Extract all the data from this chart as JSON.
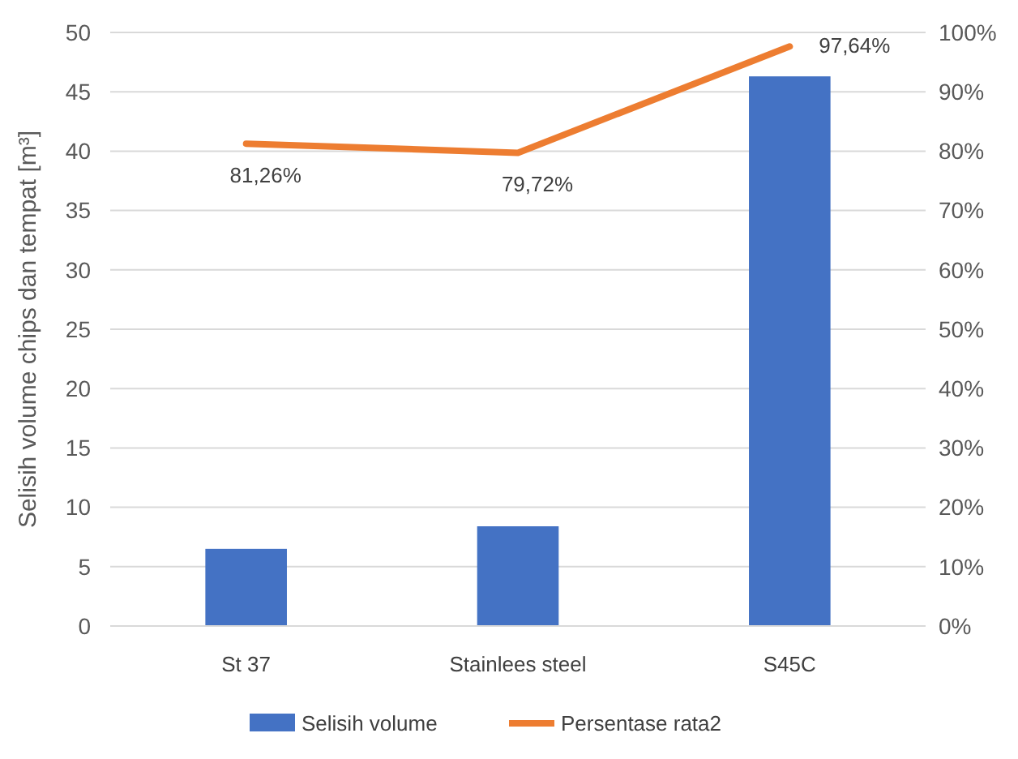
{
  "chart_data": {
    "type": "bar",
    "ylabel": "Selisih volume chips dan tempat [m³]",
    "categories": [
      "St 37",
      "Stainlees steel",
      "S45C"
    ],
    "series": [
      {
        "name": "Selisih volume",
        "color": "#4472c4",
        "values": [
          6.5,
          8.4,
          46.3
        ]
      },
      {
        "name": "Persentase rata2",
        "type": "line",
        "axis": "y2",
        "color": "#ed7d31",
        "values": [
          81.26,
          79.72,
          97.64
        ],
        "value_labels": [
          "81,26%",
          "79,72%",
          "97,64%"
        ]
      }
    ],
    "ylim": [
      0,
      50
    ],
    "yticks": [
      0,
      5,
      10,
      15,
      20,
      25,
      30,
      35,
      40,
      45,
      50
    ],
    "y2lim": [
      0,
      100
    ],
    "y2ticks": [
      {
        "value": 0,
        "label": "0%"
      },
      {
        "value": 10,
        "label": "10%"
      },
      {
        "value": 20,
        "label": "20%"
      },
      {
        "value": 30,
        "label": "30%"
      },
      {
        "value": 40,
        "label": "40%"
      },
      {
        "value": 50,
        "label": "50%"
      },
      {
        "value": 60,
        "label": "60%"
      },
      {
        "value": 70,
        "label": "70%"
      },
      {
        "value": 80,
        "label": "80%"
      },
      {
        "value": 90,
        "label": "90%"
      },
      {
        "value": 100,
        "label": "100%"
      }
    ],
    "grid": "y",
    "legend": "bottom",
    "marker": "none",
    "line_style": "solid"
  }
}
